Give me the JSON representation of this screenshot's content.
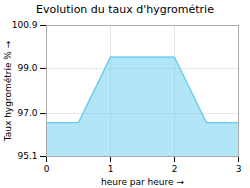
{
  "chart_data": {
    "type": "area",
    "title": "Evolution du taux d'hygrométrie",
    "xlabel": "heure par heure",
    "ylabel": "Taux hygrométrie %",
    "x": [
      0,
      0.5,
      1,
      2,
      2.5,
      3
    ],
    "values": [
      96.6,
      96.6,
      99.5,
      99.5,
      96.6,
      96.6
    ],
    "color": "#66ccee",
    "xlim": [
      0,
      3
    ],
    "xticks": [
      0,
      1,
      2,
      3
    ],
    "ylim": [
      95.1,
      100.9
    ],
    "yticks": [
      95.1,
      {
        "value": 97.0,
        "label": "97.0"
      },
      {
        "value": 99.0,
        "label": "99.0"
      },
      100.9
    ],
    "grid": true
  }
}
